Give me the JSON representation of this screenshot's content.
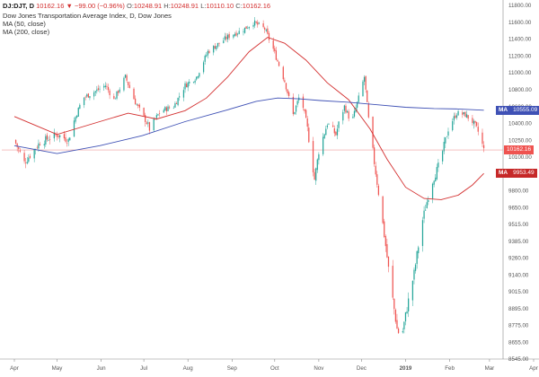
{
  "header": {
    "symbol": "DJ:DJT, D",
    "price": "10162.16",
    "change": "▼ −99.00 (−0.96%)",
    "o_label": "O:",
    "o_value": "10248.91",
    "h_label": "H:",
    "h_value": "10248.91",
    "l_label": "L:",
    "l_value": "10110.10",
    "c_label": "C:",
    "c_value": "10162.16",
    "title": "Dow Jones Transportation Average Index, D, Dow Jones",
    "ma50_label": "MA (50, close)",
    "ma200_label": "MA (200, close)"
  },
  "colors": {
    "up": "#26a69a",
    "down": "#ef5350",
    "ma50": "#d32f2f",
    "ma200": "#3f51b5",
    "price_line": "#ef9a9a",
    "axis_text": "#555555",
    "axis_line": "#888888"
  },
  "chart_data": {
    "type": "candlestick",
    "y_ticks": [
      8545.0,
      8655.0,
      8775.0,
      8895.0,
      9015.0,
      9140.0,
      9260.0,
      9385.0,
      9515.0,
      9650.0,
      9800.0,
      9950.0,
      10100.0,
      10250.0,
      10400.0,
      10600.0,
      10800.0,
      11000.0,
      11200.0,
      11400.0,
      11600.0,
      11800.0
    ],
    "y_tick_labels": [
      "8545.00",
      "8655.00",
      "8775.00",
      "8895.00",
      "9015.00",
      "9140.00",
      "9260.00",
      "9385.00",
      "9515.00",
      "9650.00",
      "9800.00",
      "9950.00",
      "10100.00",
      "10250.00",
      "10400.00",
      "10600.00",
      "10800.00",
      "11000.00",
      "11200.00",
      "11400.00",
      "11600.00",
      "11800.00"
    ],
    "ylim": [
      8545,
      11800
    ],
    "x_labels": [
      {
        "label": "Apr",
        "day": 0
      },
      {
        "label": "May",
        "day": 30
      },
      {
        "label": "Jun",
        "day": 61
      },
      {
        "label": "Jul",
        "day": 91
      },
      {
        "label": "Aug",
        "day": 122
      },
      {
        "label": "Sep",
        "day": 153
      },
      {
        "label": "Oct",
        "day": 183
      },
      {
        "label": "Nov",
        "day": 214
      },
      {
        "label": "Dec",
        "day": 244
      },
      {
        "label": "2019",
        "day": 275
      },
      {
        "label": "Feb",
        "day": 306
      },
      {
        "label": "Mar",
        "day": 334
      },
      {
        "label": "Apr",
        "day": 365
      }
    ],
    "close_path": [
      [
        0,
        10250
      ],
      [
        7,
        10050
      ],
      [
        18,
        10230
      ],
      [
        30,
        10300
      ],
      [
        38,
        10250
      ],
      [
        48,
        10700
      ],
      [
        57,
        10780
      ],
      [
        64,
        10850
      ],
      [
        70,
        10680
      ],
      [
        78,
        10950
      ],
      [
        85,
        10650
      ],
      [
        95,
        10350
      ],
      [
        103,
        10550
      ],
      [
        112,
        10600
      ],
      [
        120,
        10850
      ],
      [
        128,
        10950
      ],
      [
        136,
        11250
      ],
      [
        144,
        11350
      ],
      [
        152,
        11450
      ],
      [
        160,
        11500
      ],
      [
        168,
        11600
      ],
      [
        176,
        11520
      ],
      [
        182,
        11280
      ],
      [
        190,
        10900
      ],
      [
        196,
        10500
      ],
      [
        201,
        10750
      ],
      [
        206,
        10350
      ],
      [
        211,
        9900
      ],
      [
        214,
        10150
      ],
      [
        220,
        10400
      ],
      [
        226,
        10300
      ],
      [
        232,
        10600
      ],
      [
        237,
        10400
      ],
      [
        242,
        10700
      ],
      [
        246,
        10950
      ],
      [
        249,
        10450
      ],
      [
        253,
        10050
      ],
      [
        258,
        9600
      ],
      [
        264,
        9100
      ],
      [
        269,
        8750
      ],
      [
        272,
        8680
      ],
      [
        276,
        8900
      ],
      [
        281,
        9150
      ],
      [
        287,
        9550
      ],
      [
        293,
        9850
      ],
      [
        299,
        10050
      ],
      [
        305,
        10350
      ],
      [
        311,
        10520
      ],
      [
        317,
        10500
      ],
      [
        322,
        10420
      ],
      [
        327,
        10300
      ],
      [
        330,
        10162
      ]
    ],
    "series": [
      {
        "name": "MA (50, close)",
        "last_value": "9953.49",
        "points": [
          [
            0,
            10480
          ],
          [
            15,
            10380
          ],
          [
            30,
            10300
          ],
          [
            60,
            10420
          ],
          [
            80,
            10520
          ],
          [
            100,
            10450
          ],
          [
            120,
            10550
          ],
          [
            135,
            10700
          ],
          [
            150,
            10950
          ],
          [
            165,
            11250
          ],
          [
            178,
            11420
          ],
          [
            190,
            11350
          ],
          [
            205,
            11150
          ],
          [
            220,
            10880
          ],
          [
            235,
            10680
          ],
          [
            250,
            10350
          ],
          [
            262,
            10080
          ],
          [
            275,
            9830
          ],
          [
            288,
            9730
          ],
          [
            300,
            9720
          ],
          [
            312,
            9760
          ],
          [
            322,
            9850
          ],
          [
            330,
            9953
          ]
        ]
      },
      {
        "name": "MA (200, close)",
        "last_value": "10555.09",
        "points": [
          [
            0,
            10200
          ],
          [
            30,
            10130
          ],
          [
            60,
            10200
          ],
          [
            90,
            10290
          ],
          [
            120,
            10420
          ],
          [
            150,
            10560
          ],
          [
            170,
            10660
          ],
          [
            185,
            10700
          ],
          [
            200,
            10690
          ],
          [
            215,
            10670
          ],
          [
            235,
            10650
          ],
          [
            255,
            10620
          ],
          [
            275,
            10590
          ],
          [
            295,
            10575
          ],
          [
            312,
            10570
          ],
          [
            330,
            10555
          ]
        ]
      }
    ],
    "last_price": 10162.16,
    "last_price_label": "10162.16",
    "ma_tag": "MA",
    "ma50_last": 9953.49,
    "ma200_last": 10555.09
  }
}
